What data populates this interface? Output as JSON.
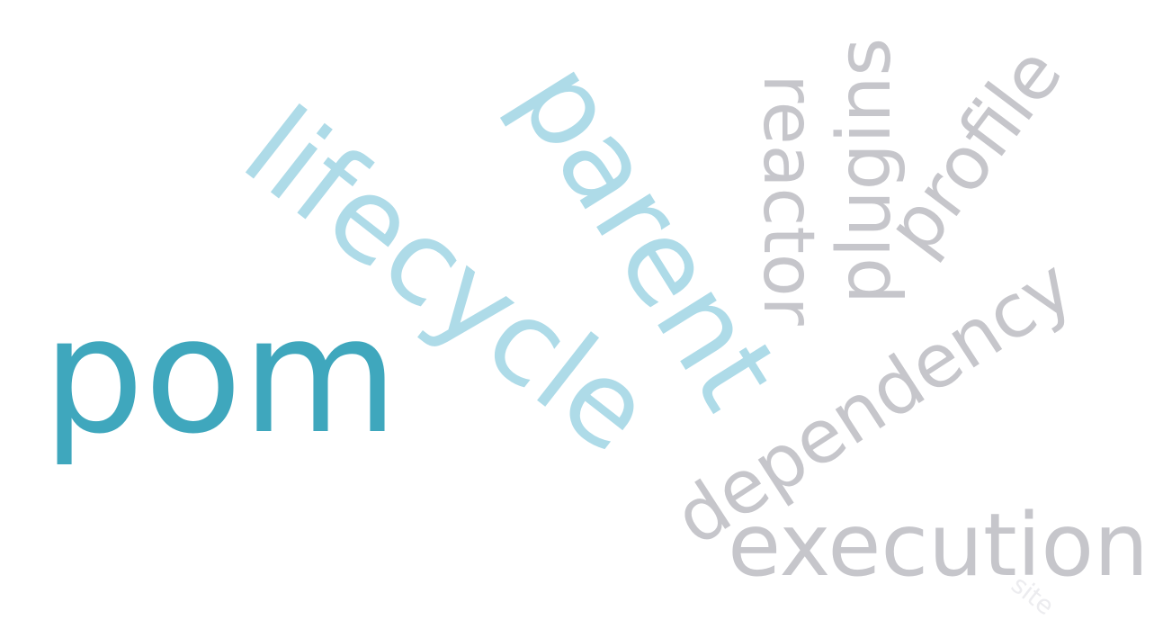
{
  "colors": {
    "primary": "#3fa7bd",
    "secondary": "#aedbe8",
    "muted": "#c6c6cb",
    "faint": "#ececef",
    "background": "#ffffff"
  },
  "words": [
    {
      "key": "pom",
      "text": "pom",
      "color": "primary"
    },
    {
      "key": "lifecycle",
      "text": "lifecycle",
      "color": "secondary"
    },
    {
      "key": "parent",
      "text": "parent",
      "color": "secondary"
    },
    {
      "key": "reactor",
      "text": "reactor",
      "color": "muted"
    },
    {
      "key": "plugins",
      "text": "plugins",
      "color": "muted"
    },
    {
      "key": "profile",
      "text": "profile",
      "color": "muted"
    },
    {
      "key": "dependency",
      "text": "dependency",
      "color": "muted"
    },
    {
      "key": "execution",
      "text": "execution",
      "color": "muted"
    },
    {
      "key": "site",
      "text": "site",
      "color": "faint"
    }
  ]
}
